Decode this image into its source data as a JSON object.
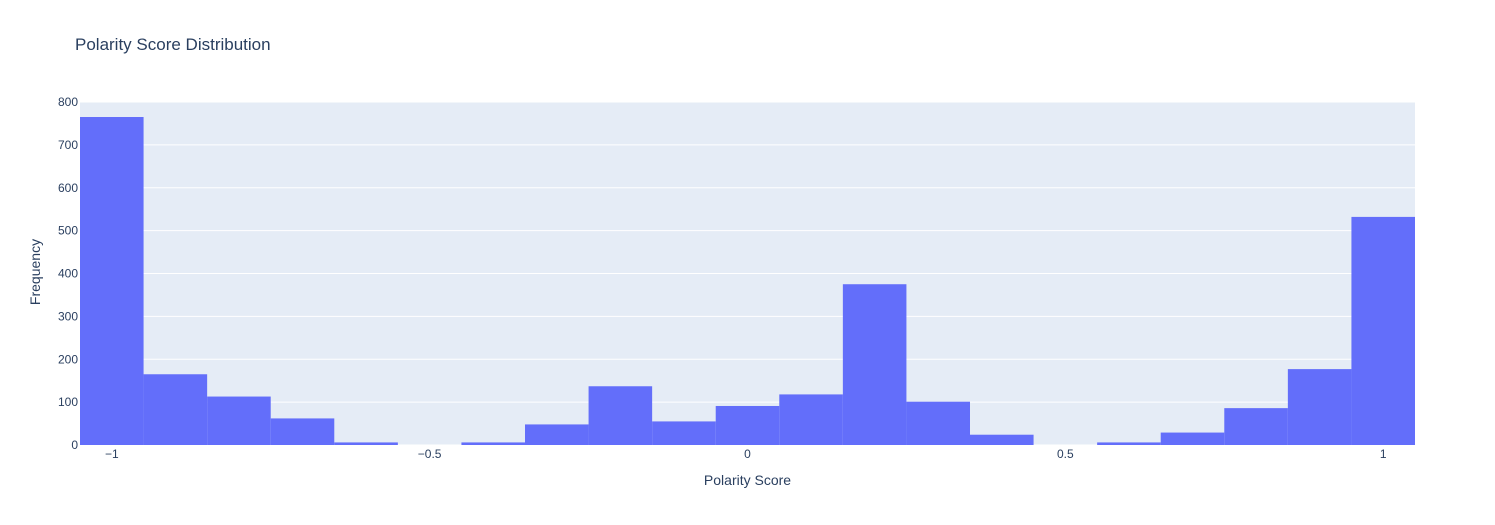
{
  "chart_data": {
    "type": "bar",
    "title": "Polarity Score Distribution",
    "xlabel": "Polarity Score",
    "ylabel": "Frequency",
    "xlim": [
      -1.05,
      1.05
    ],
    "ylim": [
      0,
      800
    ],
    "x_ticks": [
      {
        "value": -1,
        "label": "−1"
      },
      {
        "value": -0.5,
        "label": "−0.5"
      },
      {
        "value": 0,
        "label": "0"
      },
      {
        "value": 0.5,
        "label": "0.5"
      },
      {
        "value": 1,
        "label": "1"
      }
    ],
    "y_ticks": [
      {
        "value": 0,
        "label": "0"
      },
      {
        "value": 100,
        "label": "100"
      },
      {
        "value": 200,
        "label": "200"
      },
      {
        "value": 300,
        "label": "300"
      },
      {
        "value": 400,
        "label": "400"
      },
      {
        "value": 500,
        "label": "500"
      },
      {
        "value": 600,
        "label": "600"
      },
      {
        "value": 700,
        "label": "700"
      },
      {
        "value": 800,
        "label": "800"
      }
    ],
    "bin_width": 0.1,
    "bins": [
      {
        "x0": -1.05,
        "x1": -0.95,
        "count": 765
      },
      {
        "x0": -0.95,
        "x1": -0.85,
        "count": 165
      },
      {
        "x0": -0.85,
        "x1": -0.75,
        "count": 113
      },
      {
        "x0": -0.75,
        "x1": -0.65,
        "count": 62
      },
      {
        "x0": -0.65,
        "x1": -0.55,
        "count": 6
      },
      {
        "x0": -0.55,
        "x1": -0.45,
        "count": 0
      },
      {
        "x0": -0.45,
        "x1": -0.35,
        "count": 6
      },
      {
        "x0": -0.35,
        "x1": -0.25,
        "count": 48
      },
      {
        "x0": -0.25,
        "x1": -0.15,
        "count": 137
      },
      {
        "x0": -0.15,
        "x1": -0.05,
        "count": 55
      },
      {
        "x0": -0.05,
        "x1": 0.05,
        "count": 91
      },
      {
        "x0": 0.05,
        "x1": 0.15,
        "count": 118
      },
      {
        "x0": 0.15,
        "x1": 0.25,
        "count": 375
      },
      {
        "x0": 0.25,
        "x1": 0.35,
        "count": 101
      },
      {
        "x0": 0.35,
        "x1": 0.45,
        "count": 24
      },
      {
        "x0": 0.45,
        "x1": 0.55,
        "count": 0
      },
      {
        "x0": 0.55,
        "x1": 0.65,
        "count": 6
      },
      {
        "x0": 0.65,
        "x1": 0.75,
        "count": 29
      },
      {
        "x0": 0.75,
        "x1": 0.85,
        "count": 86
      },
      {
        "x0": 0.85,
        "x1": 0.95,
        "count": 177
      },
      {
        "x0": 0.95,
        "x1": 1.05,
        "count": 532
      }
    ],
    "colors": {
      "bar": "#636efa",
      "plot_bg": "#e5ecf6",
      "grid": "#ffffff",
      "text": "#2a3f5f"
    },
    "grid": true,
    "legend": "none"
  }
}
